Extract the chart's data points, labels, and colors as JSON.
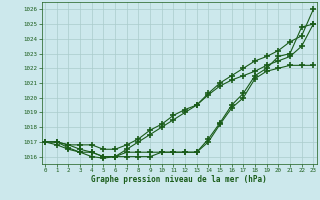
{
  "x": [
    0,
    1,
    2,
    3,
    4,
    5,
    6,
    7,
    8,
    9,
    10,
    11,
    12,
    13,
    14,
    15,
    16,
    17,
    18,
    19,
    20,
    21,
    22,
    23
  ],
  "series": [
    [
      1017.0,
      1017.0,
      1016.6,
      1016.3,
      1016.3,
      1016.0,
      1016.0,
      1016.3,
      1016.3,
      1016.3,
      1016.3,
      1016.3,
      1016.3,
      1016.3,
      1017.2,
      1018.3,
      1019.5,
      1020.3,
      1021.5,
      1022.0,
      1022.8,
      1023.0,
      1024.8,
      1025.0
    ],
    [
      1017.0,
      1016.8,
      1016.5,
      1016.3,
      1016.0,
      1015.9,
      1016.0,
      1016.0,
      1016.0,
      1016.0,
      1016.3,
      1016.3,
      1016.3,
      1016.3,
      1017.0,
      1018.2,
      1019.3,
      1020.0,
      1021.3,
      1021.8,
      1022.0,
      1022.2,
      1022.2,
      1022.2
    ],
    [
      1017.0,
      1017.0,
      1016.8,
      1016.8,
      1016.8,
      1016.5,
      1016.5,
      1016.8,
      1017.2,
      1017.8,
      1018.2,
      1018.8,
      1019.2,
      1019.5,
      1020.2,
      1020.8,
      1021.2,
      1021.5,
      1021.8,
      1022.2,
      1022.5,
      1022.8,
      1023.5,
      1025.0
    ],
    [
      1017.0,
      1017.0,
      1016.8,
      1016.5,
      1016.3,
      1016.0,
      1016.0,
      1016.5,
      1017.0,
      1017.5,
      1018.0,
      1018.5,
      1019.0,
      1019.5,
      1020.3,
      1021.0,
      1021.5,
      1022.0,
      1022.5,
      1022.8,
      1023.2,
      1023.8,
      1024.2,
      1026.0
    ]
  ],
  "colors": [
    "#1a5c1a",
    "#1a5c1a",
    "#1a5c1a",
    "#1a5c1a"
  ],
  "marker": "+",
  "markersize": 4,
  "markeredgewidth": 1.2,
  "ylim": [
    1015.5,
    1026.5
  ],
  "yticks": [
    1016,
    1017,
    1018,
    1019,
    1020,
    1021,
    1022,
    1023,
    1024,
    1025,
    1026
  ],
  "xlim": [
    -0.3,
    23.3
  ],
  "xticks": [
    0,
    1,
    2,
    3,
    4,
    5,
    6,
    7,
    8,
    9,
    10,
    11,
    12,
    13,
    14,
    15,
    16,
    17,
    18,
    19,
    20,
    21,
    22,
    23
  ],
  "xlabel": "Graphe pression niveau de la mer (hPa)",
  "bg_color": "#cce8ec",
  "grid_color": "#aacccc",
  "text_color": "#1a5c1a"
}
